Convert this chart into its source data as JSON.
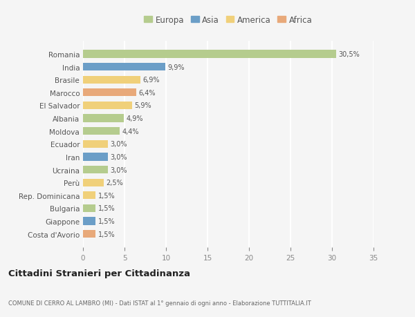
{
  "countries": [
    "Romania",
    "India",
    "Brasile",
    "Marocco",
    "El Salvador",
    "Albania",
    "Moldova",
    "Ecuador",
    "Iran",
    "Ucraina",
    "Perù",
    "Rep. Dominicana",
    "Bulgaria",
    "Giappone",
    "Costa d'Avorio"
  ],
  "values": [
    30.5,
    9.9,
    6.9,
    6.4,
    5.9,
    4.9,
    4.4,
    3.0,
    3.0,
    3.0,
    2.5,
    1.5,
    1.5,
    1.5,
    1.5
  ],
  "labels": [
    "30,5%",
    "9,9%",
    "6,9%",
    "6,4%",
    "5,9%",
    "4,9%",
    "4,4%",
    "3,0%",
    "3,0%",
    "3,0%",
    "2,5%",
    "1,5%",
    "1,5%",
    "1,5%",
    "1,5%"
  ],
  "continents": [
    "Europa",
    "Asia",
    "America",
    "Africa",
    "America",
    "Europa",
    "Europa",
    "America",
    "Asia",
    "Europa",
    "America",
    "America",
    "Europa",
    "Asia",
    "Africa"
  ],
  "continent_colors": {
    "Europa": "#b5cc8e",
    "Asia": "#6b9ec7",
    "America": "#f0d07a",
    "Africa": "#e8a97a"
  },
  "legend_order": [
    "Europa",
    "Asia",
    "America",
    "Africa"
  ],
  "title": "Cittadini Stranieri per Cittadinanza",
  "subtitle": "COMUNE DI CERRO AL LAMBRO (MI) - Dati ISTAT al 1° gennaio di ogni anno - Elaborazione TUTTITALIA.IT",
  "xlim": [
    0,
    35
  ],
  "xticks": [
    0,
    5,
    10,
    15,
    20,
    25,
    30,
    35
  ],
  "background_color": "#f5f5f5",
  "grid_color": "#ffffff",
  "bar_height": 0.6
}
